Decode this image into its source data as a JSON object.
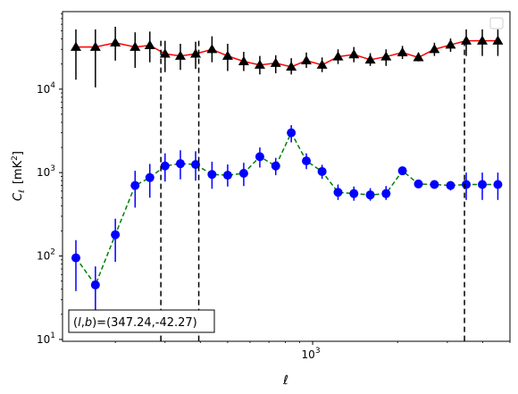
{
  "chart_data": {
    "type": "scatter",
    "title": "",
    "xlabel": "ℓ",
    "ylabel_main": "C",
    "ylabel_sub": "ℓ",
    "ylabel_units": "[mK",
    "ylabel_units_sup": "2",
    "ylabel_units_close": "]",
    "xscale": "log",
    "yscale": "log",
    "xlim": [
      130,
      5000
    ],
    "ylim": [
      9.5,
      85000
    ],
    "grid": false,
    "legend": "top-right (empty)",
    "x_ticks": [
      {
        "value": 1000,
        "base": "10",
        "exp": "3"
      }
    ],
    "y_ticks": [
      {
        "value": 10,
        "base": "10",
        "exp": "1"
      },
      {
        "value": 100,
        "base": "10",
        "exp": "2"
      },
      {
        "value": 1000,
        "base": "10",
        "exp": "3"
      },
      {
        "value": 10000,
        "base": "10",
        "exp": "4"
      }
    ],
    "vlines_x": [
      290,
      395,
      3450
    ],
    "annotation": {
      "prefix": "(",
      "l": "l",
      "comma": ",",
      "b": "b",
      "suffix": ")=(347.24,-42.27)"
    },
    "series": [
      {
        "marker": "triangle",
        "color": "#000000",
        "line_color": "#ff0000",
        "line_style": "solid",
        "x": [
          145,
          170,
          200,
          235,
          265,
          300,
          340,
          385,
          440,
          500,
          570,
          650,
          740,
          840,
          950,
          1080,
          1230,
          1400,
          1600,
          1820,
          2080,
          2370,
          2700,
          3080,
          3500,
          3990,
          4530
        ],
        "y": [
          32000,
          32000,
          36000,
          32000,
          33500,
          26500,
          25000,
          26500,
          30000,
          25000,
          21500,
          19500,
          20500,
          18500,
          22000,
          19500,
          24500,
          26000,
          22500,
          24500,
          27500,
          24000,
          30000,
          34000,
          38000,
          38000,
          38000
        ],
        "y_lo": [
          13000,
          10500,
          22000,
          18000,
          21000,
          16000,
          17000,
          17500,
          21000,
          16500,
          16500,
          15000,
          15500,
          15000,
          18000,
          16000,
          20000,
          21000,
          19000,
          19000,
          23000,
          21500,
          25000,
          28000,
          25000,
          25000,
          25000
        ],
        "y_hi": [
          52000,
          52000,
          56000,
          48000,
          49000,
          38000,
          35000,
          37000,
          43000,
          35000,
          28000,
          25000,
          25500,
          23500,
          27500,
          24000,
          30000,
          32000,
          27000,
          30000,
          33000,
          27500,
          36000,
          40500,
          52000,
          52000,
          52000
        ]
      },
      {
        "marker": "circle",
        "color": "#0000ff",
        "line_color": "#008000",
        "line_style": "dashed",
        "x": [
          145,
          170,
          200,
          235,
          265,
          300,
          340,
          385,
          440,
          500,
          570,
          650,
          740,
          840,
          950,
          1080,
          1230,
          1400,
          1600,
          1820,
          2080,
          2370,
          2700,
          3080,
          3500,
          3990,
          4530
        ],
        "y": [
          95,
          45,
          180,
          700,
          870,
          1200,
          1280,
          1250,
          950,
          930,
          980,
          1550,
          1200,
          3000,
          1380,
          1030,
          580,
          560,
          540,
          560,
          1050,
          730,
          720,
          700,
          720,
          720,
          720
        ],
        "y_lo": [
          38,
          19,
          85,
          380,
          500,
          780,
          830,
          800,
          640,
          680,
          690,
          1150,
          930,
          2300,
          1100,
          840,
          470,
          460,
          460,
          470,
          960,
          680,
          670,
          610,
          470,
          470,
          470
        ],
        "y_hi": [
          155,
          75,
          280,
          1050,
          1270,
          1700,
          1850,
          1800,
          1350,
          1250,
          1310,
          2000,
          1500,
          3700,
          1700,
          1240,
          720,
          680,
          650,
          690,
          1160,
          790,
          780,
          790,
          1000,
          1000,
          1000
        ]
      }
    ]
  }
}
